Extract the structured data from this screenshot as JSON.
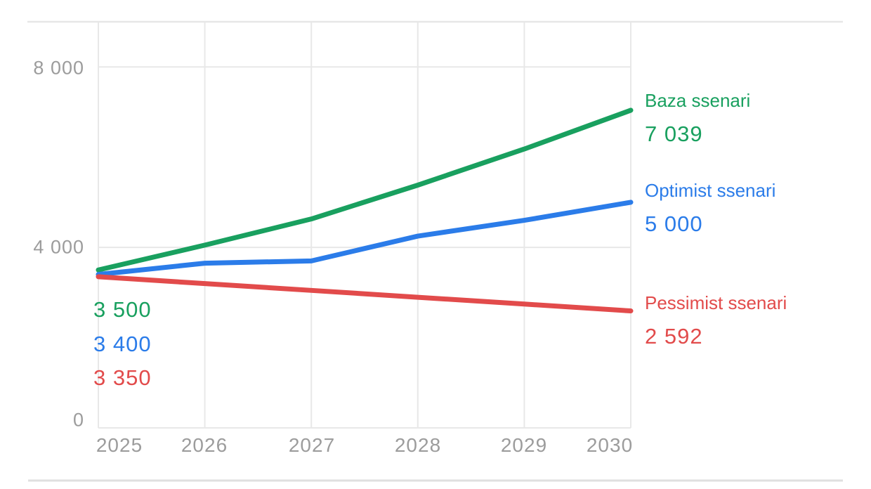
{
  "chart_data": {
    "type": "line",
    "title": "",
    "xlabel": "",
    "ylabel": "",
    "x": [
      2025,
      2026,
      2027,
      2028,
      2029,
      2030
    ],
    "xtick_labels": [
      "2025",
      "2026",
      "2027",
      "2028",
      "2029",
      "2030"
    ],
    "yticks": [
      {
        "value": 0,
        "label": "0"
      },
      {
        "value": 4000,
        "label": "4 000"
      },
      {
        "value": 8000,
        "label": "8 000"
      }
    ],
    "ylim": [
      0,
      9000
    ],
    "grid": true,
    "legend_position": "right",
    "series": [
      {
        "name": "Baza ssenari",
        "color": "#19a05f",
        "values": [
          3500,
          4050,
          4630,
          5380,
          6180,
          7039
        ],
        "start_value": 3500,
        "end_value": 7039,
        "start_label": "3 500",
        "end_label": "7 039"
      },
      {
        "name": "Optimist ssenari",
        "color": "#2b7ce9",
        "values": [
          3400,
          3650,
          3700,
          4250,
          4600,
          5000
        ],
        "start_value": 3400,
        "end_value": 5000,
        "start_label": "3 400",
        "end_label": "5 000"
      },
      {
        "name": "Pessimist ssenari",
        "color": "#e24b4b",
        "values": [
          3350,
          3198,
          3047,
          2895,
          2744,
          2592
        ],
        "start_value": 3350,
        "end_value": 2592,
        "start_label": "3 350",
        "end_label": "2 592"
      }
    ]
  }
}
